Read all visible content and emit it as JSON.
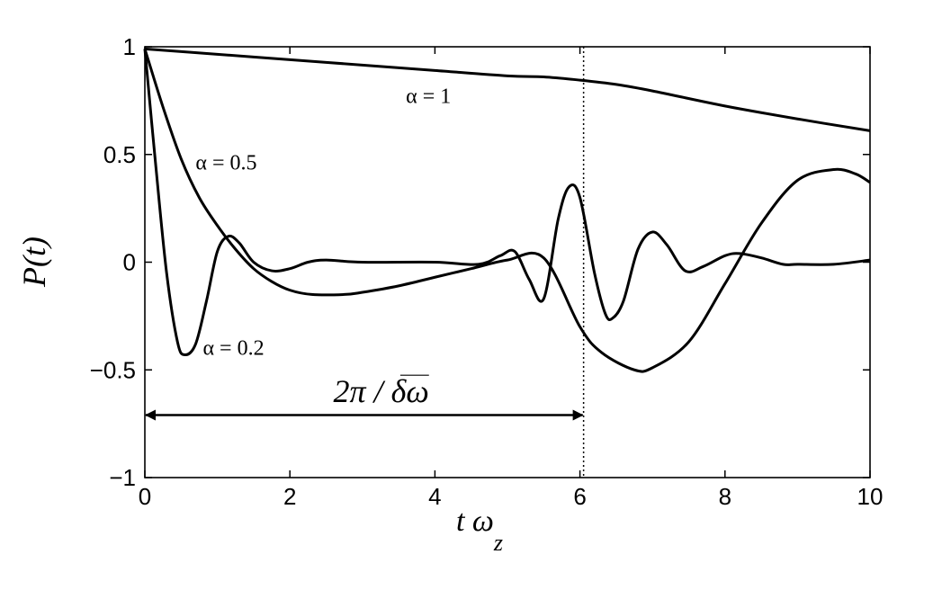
{
  "chart_data": {
    "type": "line",
    "xlabel": "t ω",
    "xlabel_sub": "z",
    "ylabel": "P(t)",
    "xlim": [
      0,
      10
    ],
    "ylim": [
      -1,
      1
    ],
    "xticks": [
      0,
      2,
      4,
      6,
      8,
      10
    ],
    "yticks": [
      -1,
      -0.5,
      0,
      0.5,
      1
    ],
    "xtick_labels": [
      "0",
      "2",
      "4",
      "6",
      "8",
      "10"
    ],
    "ytick_labels": [
      "−1",
      "−0.5",
      "0",
      "0.5",
      "1"
    ],
    "grid": false,
    "series": [
      {
        "name": "α = 1",
        "x": [
          0,
          1,
          2,
          3,
          4,
          5,
          5.5,
          6,
          6.5,
          7,
          8,
          9,
          10
        ],
        "y": [
          0.99,
          0.965,
          0.94,
          0.915,
          0.89,
          0.865,
          0.86,
          0.845,
          0.825,
          0.795,
          0.725,
          0.665,
          0.61
        ]
      },
      {
        "name": "α = 0.5",
        "x": [
          0,
          0.25,
          0.5,
          0.75,
          1.0,
          1.25,
          1.5,
          1.75,
          2.0,
          2.3,
          2.75,
          3.0,
          3.5,
          4.0,
          4.5,
          5.0,
          5.5,
          6.0,
          6.3,
          6.75,
          7.0,
          7.5,
          8.0,
          8.5,
          9.0,
          9.5,
          9.8,
          10.0
        ],
        "y": [
          0.99,
          0.72,
          0.48,
          0.3,
          0.17,
          0.06,
          -0.03,
          -0.09,
          -0.13,
          -0.15,
          -0.15,
          -0.14,
          -0.11,
          -0.07,
          -0.03,
          0.01,
          0.02,
          -0.3,
          -0.42,
          -0.5,
          -0.49,
          -0.37,
          -0.1,
          0.18,
          0.38,
          0.43,
          0.41,
          0.37
        ]
      },
      {
        "name": "α = 0.2",
        "x": [
          0,
          0.15,
          0.3,
          0.45,
          0.55,
          0.7,
          0.85,
          1.0,
          1.15,
          1.3,
          1.5,
          1.75,
          2.0,
          2.25,
          2.5,
          3.0,
          4.0,
          4.6,
          4.9,
          5.1,
          5.3,
          5.5,
          5.7,
          5.85,
          6.0,
          6.2,
          6.35,
          6.45,
          6.6,
          6.8,
          7.0,
          7.2,
          7.45,
          7.7,
          8.0,
          8.2,
          8.5,
          8.8,
          9.0,
          9.5,
          10.0
        ],
        "y": [
          0.99,
          0.45,
          -0.05,
          -0.37,
          -0.43,
          -0.38,
          -0.18,
          0.05,
          0.12,
          0.09,
          0.0,
          -0.04,
          -0.03,
          0.0,
          0.01,
          0.0,
          0.0,
          -0.01,
          0.03,
          0.05,
          -0.08,
          -0.17,
          0.2,
          0.35,
          0.3,
          -0.05,
          -0.24,
          -0.26,
          -0.18,
          0.06,
          0.14,
          0.08,
          -0.04,
          -0.02,
          0.03,
          0.04,
          0.02,
          -0.01,
          -0.01,
          -0.01,
          0.01
        ]
      }
    ],
    "annotations": [
      {
        "text": "α = 1",
        "x": 3.6,
        "y": 0.74
      },
      {
        "text": "α = 0.5",
        "x": 0.7,
        "y": 0.43
      },
      {
        "text": "α = 0.2",
        "x": 0.8,
        "y": -0.43
      },
      {
        "text": "2π / δω",
        "x": 2.6,
        "y": -0.65
      }
    ],
    "reference_line_x": 6.05,
    "arrow": {
      "x_start": 0,
      "x_end": 6.05,
      "y": -0.71
    }
  }
}
